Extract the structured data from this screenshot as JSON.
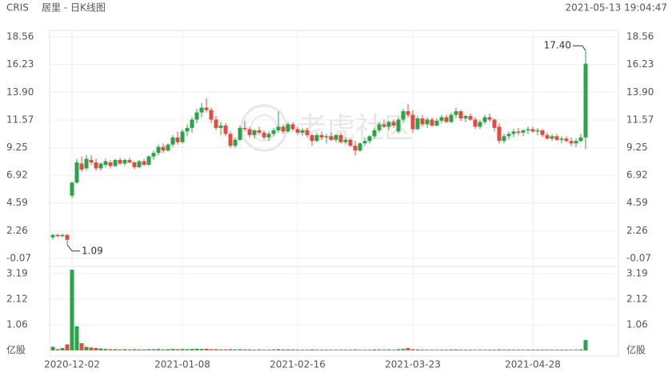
{
  "chart_data": {
    "type": "candlestick",
    "symbol": "CRIS",
    "title": "居里 - 日K线图",
    "timestamp": "2021-05-13 19:04:47",
    "watermark": "老虎社区",
    "categories": [
      null,
      null,
      null,
      null,
      "2020-12-02",
      null,
      null,
      null,
      null,
      null,
      null,
      null,
      null,
      null,
      null,
      null,
      null,
      null,
      null,
      null,
      null,
      null,
      null,
      null,
      null,
      null,
      null,
      "2021-01-08",
      null,
      null,
      null,
      null,
      null,
      null,
      null,
      null,
      null,
      null,
      null,
      null,
      null,
      null,
      null,
      null,
      null,
      null,
      null,
      null,
      null,
      null,
      null,
      "2021-02-16",
      null,
      null,
      null,
      null,
      null,
      null,
      null,
      null,
      null,
      null,
      null,
      null,
      null,
      null,
      null,
      null,
      null,
      null,
      null,
      null,
      null,
      null,
      null,
      "2021-03-23",
      null,
      null,
      null,
      null,
      null,
      null,
      null,
      null,
      null,
      null,
      null,
      null,
      null,
      null,
      null,
      null,
      null,
      null,
      null,
      null,
      null,
      null,
      null,
      null,
      "2021-04-28",
      null,
      null,
      null,
      null,
      null,
      null,
      null,
      null,
      null,
      null,
      null
    ],
    "open": [
      1.7,
      1.9,
      1.8,
      1.9,
      5.2,
      6.3,
      7.9,
      7.5,
      8.2,
      8.0,
      7.5,
      7.8,
      8.0,
      7.7,
      8.2,
      7.9,
      8.2,
      8.0,
      7.6,
      8.1,
      7.8,
      8.5,
      8.8,
      9.3,
      9.0,
      9.5,
      10.1,
      9.7,
      10.6,
      10.9,
      11.6,
      12.2,
      12.6,
      12.4,
      11.6,
      10.9,
      11.1,
      10.4,
      9.4,
      9.9,
      10.9,
      10.8,
      10.3,
      10.7,
      10.5,
      10.1,
      10.4,
      10.7,
      11.0,
      10.6,
      11.2,
      10.8,
      10.5,
      10.7,
      10.3,
      9.8,
      10.3,
      10.1,
      10.2,
      9.9,
      10.3,
      9.7,
      9.9,
      9.4,
      9.0,
      9.6,
      9.8,
      10.2,
      10.7,
      11.2,
      11.0,
      11.4,
      10.6,
      11.6,
      12.3,
      12.0,
      10.8,
      11.7,
      11.2,
      11.6,
      11.1,
      11.5,
      11.8,
      11.4,
      12.0,
      12.3,
      11.7,
      11.9,
      11.6,
      11.0,
      11.4,
      11.8,
      11.6,
      11.0,
      9.8,
      10.2,
      10.4,
      10.6,
      10.5,
      10.7,
      10.8,
      10.6,
      10.7,
      10.3,
      10.0,
      10.2,
      9.9,
      10.0,
      9.8,
      9.6,
      9.8,
      10.1
    ],
    "high": [
      2.0,
      2.0,
      2.0,
      2.0,
      6.4,
      8.3,
      8.5,
      8.6,
      8.6,
      8.3,
      8.0,
      8.3,
      8.2,
      8.3,
      8.4,
      8.3,
      8.4,
      8.1,
      8.2,
      8.3,
      8.6,
      9.0,
      9.5,
      9.6,
      9.6,
      10.3,
      10.6,
      10.8,
      11.2,
      11.8,
      12.5,
      13.0,
      13.4,
      12.6,
      11.9,
      11.4,
      11.3,
      10.6,
      10.1,
      11.1,
      11.5,
      11.0,
      10.8,
      11.0,
      10.7,
      10.6,
      10.9,
      12.3,
      11.2,
      11.4,
      11.4,
      11.0,
      10.9,
      10.9,
      10.4,
      10.5,
      10.6,
      10.4,
      10.5,
      10.4,
      10.5,
      10.1,
      10.0,
      9.8,
      9.7,
      10.1,
      10.3,
      10.9,
      11.4,
      11.6,
      11.5,
      11.6,
      11.8,
      12.5,
      12.9,
      12.4,
      11.9,
      12.0,
      11.8,
      11.8,
      11.7,
      12.0,
      12.0,
      12.2,
      12.6,
      12.4,
      12.0,
      12.1,
      11.8,
      11.6,
      12.0,
      12.1,
      11.7,
      11.3,
      10.4,
      10.6,
      10.8,
      10.9,
      10.8,
      11.0,
      11.0,
      10.9,
      10.8,
      10.5,
      10.4,
      10.4,
      10.2,
      10.2,
      10.1,
      10.0,
      10.4,
      17.4
    ],
    "low": [
      1.5,
      1.7,
      1.7,
      1.09,
      5.0,
      6.2,
      7.2,
      7.3,
      7.8,
      7.3,
      7.3,
      7.6,
      7.5,
      7.6,
      7.8,
      7.7,
      7.9,
      7.4,
      7.5,
      7.7,
      7.7,
      8.2,
      8.6,
      8.8,
      8.9,
      9.3,
      9.5,
      9.6,
      10.2,
      10.5,
      11.3,
      11.8,
      12.2,
      11.3,
      10.7,
      10.3,
      10.2,
      9.2,
      9.2,
      9.8,
      10.6,
      10.1,
      10.0,
      10.3,
      9.9,
      9.8,
      10.2,
      10.5,
      10.4,
      10.5,
      10.6,
      10.3,
      10.2,
      10.1,
      9.4,
      9.7,
      9.9,
      9.6,
      9.8,
      9.7,
      9.6,
      9.5,
      9.3,
      8.6,
      8.9,
      9.4,
      9.6,
      10.0,
      10.5,
      10.9,
      10.7,
      10.9,
      10.4,
      11.4,
      11.8,
      10.5,
      10.7,
      11.0,
      10.9,
      11.0,
      11.0,
      11.3,
      11.3,
      11.3,
      11.7,
      11.5,
      11.4,
      11.5,
      10.8,
      10.8,
      11.2,
      11.4,
      10.6,
      9.6,
      9.6,
      9.9,
      10.1,
      10.3,
      10.2,
      10.4,
      10.5,
      10.3,
      10.1,
      9.9,
      9.8,
      9.8,
      9.6,
      9.7,
      9.4,
      9.3,
      9.7,
      9.1
    ],
    "close": [
      1.9,
      1.8,
      1.9,
      1.5,
      6.3,
      8.0,
      7.4,
      8.3,
      8.0,
      7.5,
      7.9,
      8.1,
      7.7,
      8.2,
      7.9,
      8.2,
      8.0,
      7.6,
      8.1,
      7.8,
      8.5,
      8.8,
      9.3,
      9.0,
      9.5,
      10.1,
      9.7,
      10.6,
      10.9,
      11.6,
      12.2,
      12.6,
      12.4,
      11.6,
      10.9,
      11.1,
      10.4,
      9.4,
      9.9,
      10.9,
      10.8,
      10.3,
      10.7,
      10.5,
      10.1,
      10.4,
      10.7,
      11.0,
      10.6,
      11.2,
      10.8,
      10.5,
      10.7,
      10.3,
      9.8,
      10.3,
      10.1,
      10.2,
      9.9,
      10.3,
      9.7,
      9.9,
      9.4,
      9.0,
      9.6,
      9.8,
      10.2,
      10.7,
      11.2,
      11.0,
      11.4,
      11.1,
      11.6,
      12.3,
      12.0,
      10.8,
      11.7,
      11.2,
      11.6,
      11.1,
      11.5,
      11.8,
      11.4,
      12.0,
      12.3,
      11.7,
      11.9,
      11.6,
      11.0,
      11.4,
      11.8,
      11.6,
      10.9,
      9.8,
      10.2,
      10.4,
      10.6,
      10.5,
      10.7,
      10.8,
      10.6,
      10.7,
      10.3,
      10.0,
      10.2,
      9.9,
      10.0,
      9.8,
      9.6,
      9.8,
      10.1,
      16.3
    ],
    "up_color": "#2ca34a",
    "down_color": "#e24b3f",
    "ylim": [
      -0.07,
      18.56
    ],
    "yticks": [
      -0.07,
      2.26,
      4.59,
      6.92,
      9.25,
      11.57,
      {
        "value": 13.9,
        "label": "13.90"
      },
      16.23,
      18.56
    ],
    "grid": true,
    "annotations": [
      {
        "label": "17.40",
        "value": 17.4,
        "at": "high"
      },
      {
        "label": "1.09",
        "value": 1.09,
        "at": "low"
      }
    ],
    "volume": {
      "values": [
        0.15,
        0.05,
        0.1,
        0.25,
        3.35,
        1.0,
        0.3,
        0.15,
        0.12,
        0.1,
        0.08,
        0.06,
        0.05,
        0.05,
        0.04,
        0.05,
        0.04,
        0.05,
        0.04,
        0.04,
        0.05,
        0.05,
        0.06,
        0.04,
        0.05,
        0.06,
        0.05,
        0.06,
        0.05,
        0.06,
        0.07,
        0.06,
        0.07,
        0.05,
        0.05,
        0.04,
        0.04,
        0.05,
        0.04,
        0.05,
        0.04,
        0.04,
        0.03,
        0.04,
        0.03,
        0.03,
        0.04,
        0.05,
        0.04,
        0.04,
        0.04,
        0.03,
        0.03,
        0.03,
        0.04,
        0.03,
        0.03,
        0.03,
        0.03,
        0.03,
        0.03,
        0.03,
        0.03,
        0.04,
        0.03,
        0.03,
        0.03,
        0.04,
        0.04,
        0.03,
        0.04,
        0.03,
        0.05,
        0.06,
        0.1,
        0.05,
        0.04,
        0.03,
        0.03,
        0.03,
        0.03,
        0.03,
        0.03,
        0.04,
        0.04,
        0.03,
        0.03,
        0.03,
        0.03,
        0.03,
        0.03,
        0.03,
        0.03,
        0.04,
        0.03,
        0.03,
        0.03,
        0.03,
        0.03,
        0.03,
        0.03,
        0.03,
        0.03,
        0.03,
        0.03,
        0.03,
        0.03,
        0.03,
        0.03,
        0.03,
        0.04,
        0.43
      ],
      "ylim": [
        0,
        3.19
      ],
      "yticks": [
        {
          "value": 0,
          "label": "亿股"
        },
        1.06,
        2.12,
        3.19
      ]
    }
  }
}
